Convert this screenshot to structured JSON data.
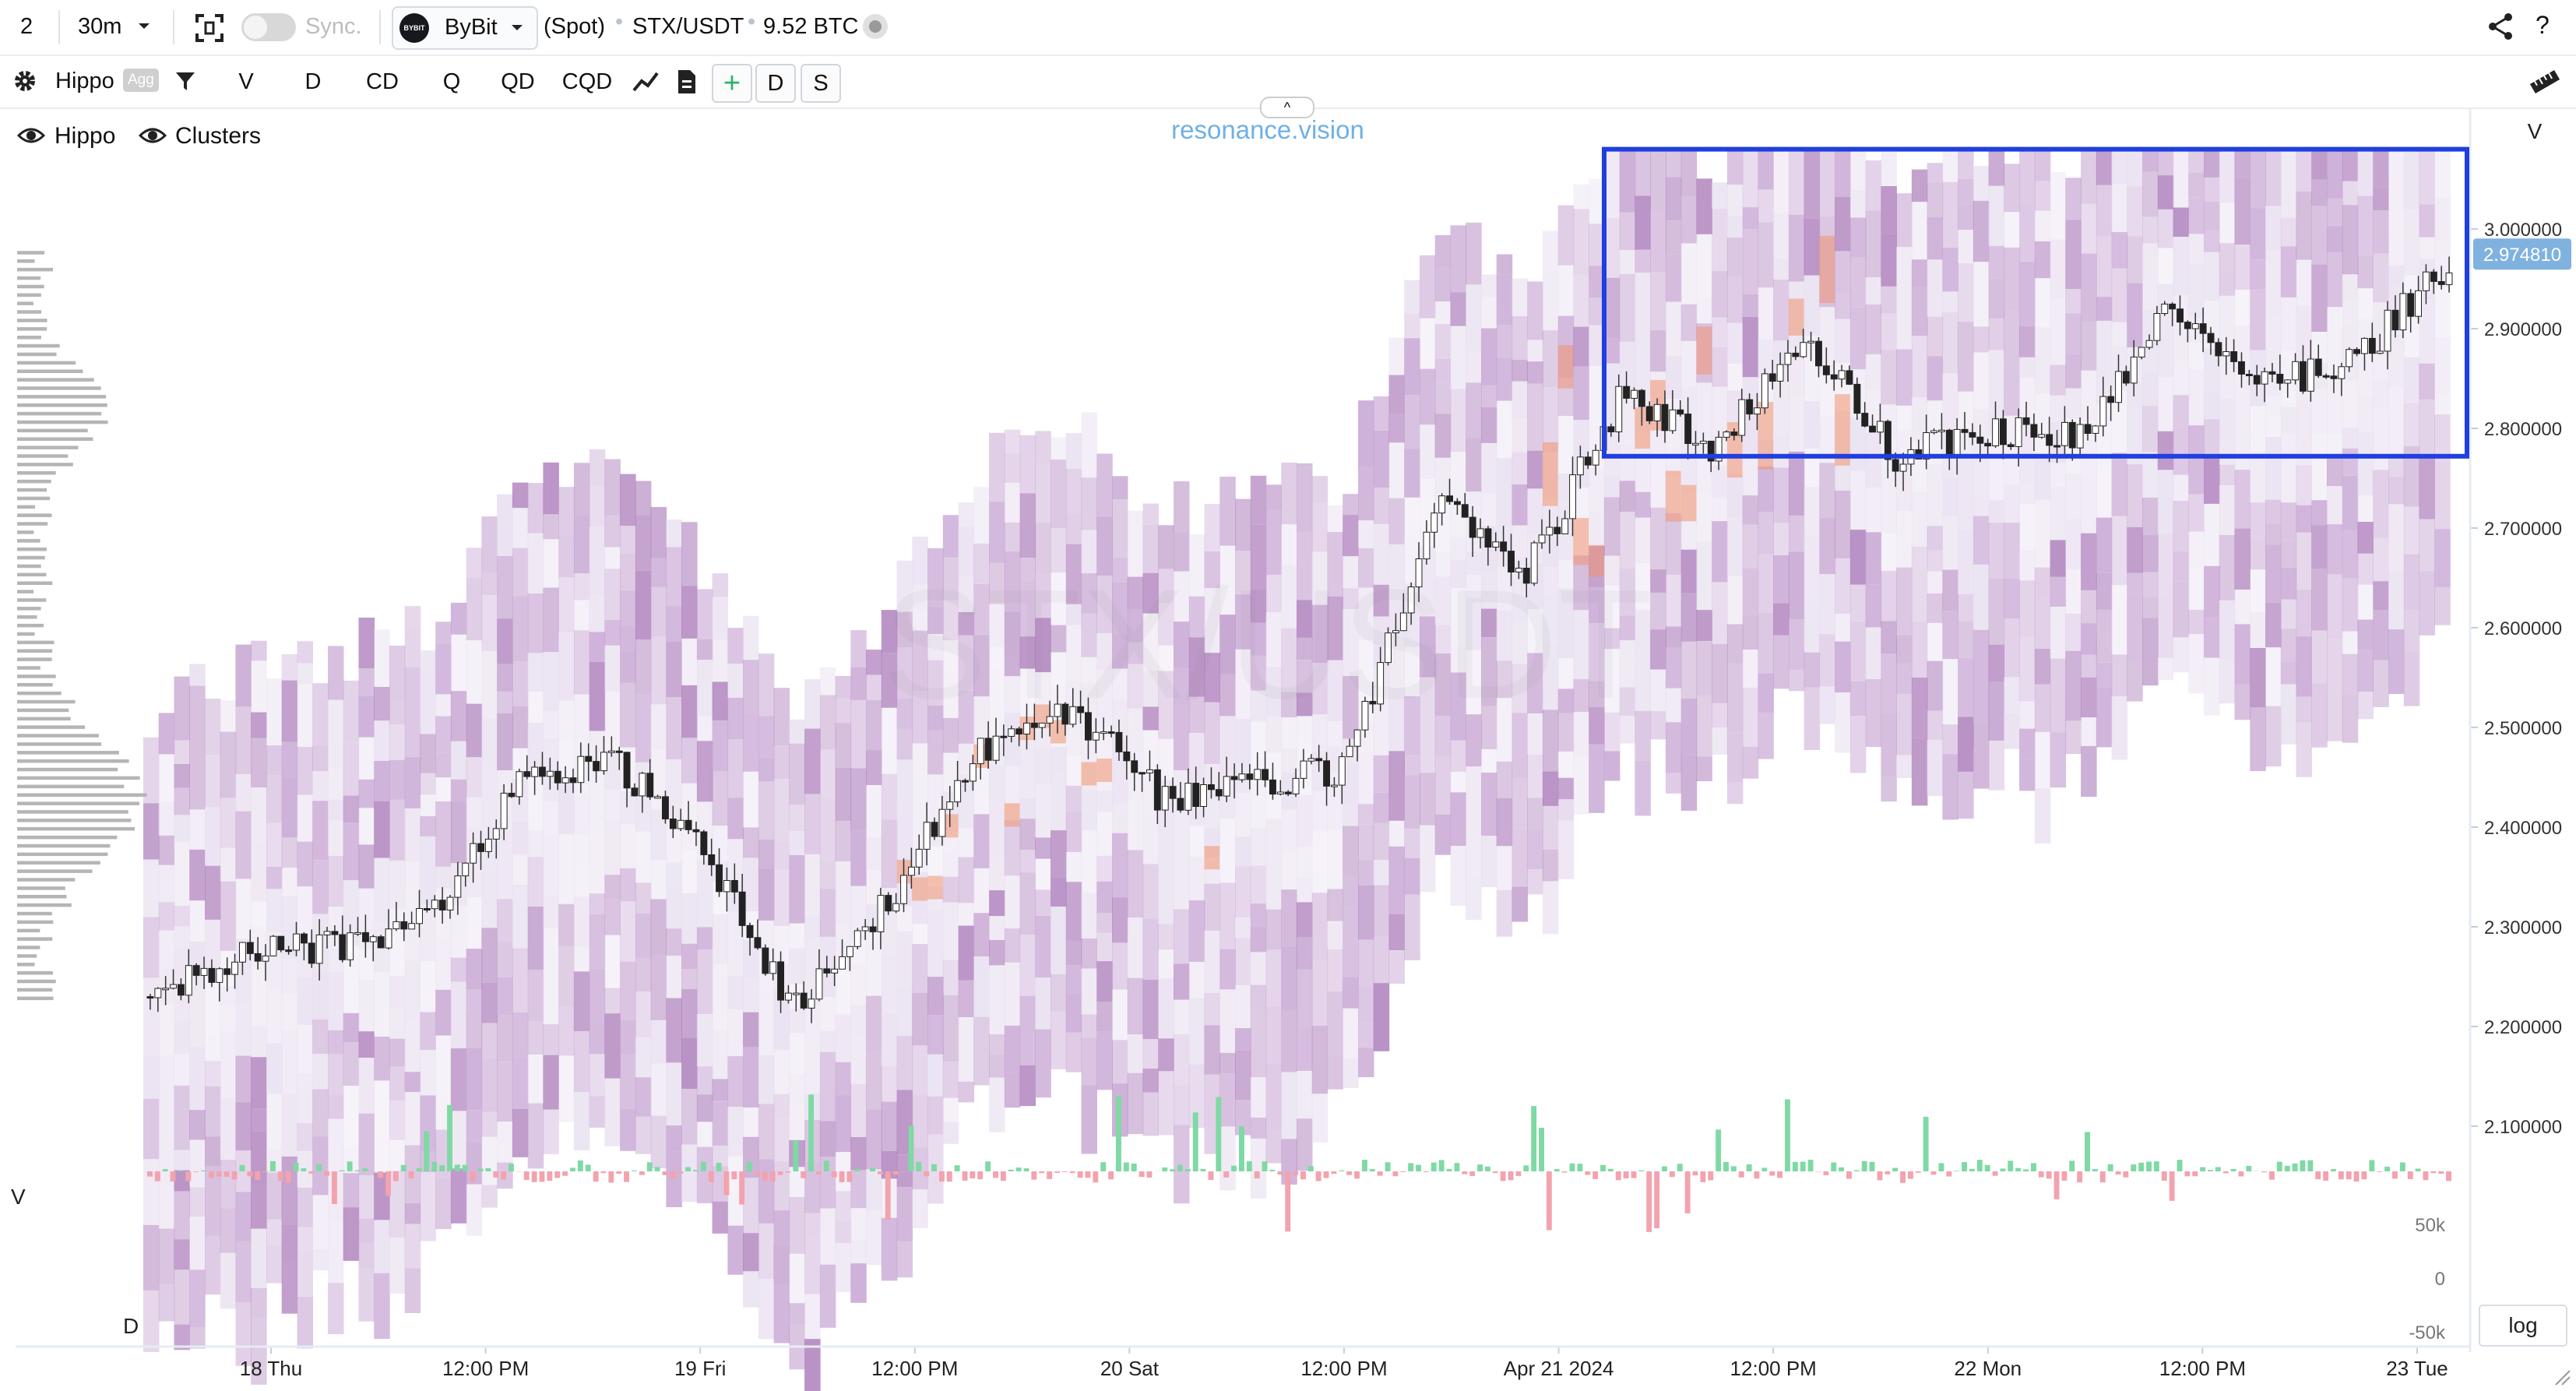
{
  "topbar": {
    "layout_number": "2",
    "interval": "30m",
    "sync_label": "Sync.",
    "exchange": "ByBit",
    "exchange_logo_text": "BYBIT",
    "market_type": "(Spot)",
    "pair": "STX/USDT",
    "volume": "9.52 BTC",
    "help": "?"
  },
  "toolbar": {
    "indicator": "Hippo",
    "agg_badge": "Agg",
    "buttons": [
      "V",
      "D",
      "CD",
      "Q",
      "QD",
      "CQD"
    ],
    "plus": "+",
    "d_button": "D",
    "s_button": "S",
    "collapse_glyph": "^"
  },
  "legend": {
    "hippo": "Hippo",
    "clusters": "Clusters"
  },
  "watermark": {
    "brand": "resonance.vision",
    "symbol": "STX/USDT"
  },
  "price_axis": {
    "header": "V",
    "ticks": [
      "3.000000",
      "2.900000",
      "2.800000",
      "2.700000",
      "2.600000",
      "2.500000",
      "2.400000",
      "2.300000",
      "2.200000",
      "2.100000"
    ],
    "current_price": "2.974810",
    "current_price_value": 2.97481
  },
  "volume_pane": {
    "label_v": "V",
    "label_d": "D",
    "ticks": [
      "50k",
      "0",
      "-50k"
    ],
    "log_button": "log"
  },
  "time_axis": {
    "labels": [
      "18 Thu",
      "12:00 PM",
      "19 Fri",
      "12:00 PM",
      "20 Sat",
      "12:00 PM",
      "Apr 21 2024",
      "12:00 PM",
      "22 Mon",
      "12:00 PM",
      "23 Tue"
    ]
  },
  "colors": {
    "accent_blue": "#1f3fe0",
    "price_tag": "#7fb2df",
    "delta_positive": "#7fd9a4",
    "delta_negative": "#f2a3ae",
    "heatmap_light": "#e6dcee",
    "heatmap_mid": "#c39fd0",
    "heatmap_dark": "#a978b8",
    "heatmap_hot": "#f0946f"
  },
  "chart_data": {
    "type": "candlestick_heatmap",
    "pair": "STX/USDT",
    "interval": "30m",
    "ylim": [
      2.03,
      3.08
    ],
    "x": [
      "18 Thu",
      "12:00 PM",
      "19 Fri",
      "12:00 PM",
      "20 Sat",
      "12:00 PM",
      "Apr 21 2024",
      "12:00 PM",
      "22 Mon",
      "12:00 PM",
      "23 Tue"
    ],
    "price_path": [
      {
        "t": "17 Wed 18:00",
        "price": 2.23
      },
      {
        "t": "18 Thu 00:00",
        "price": 2.27
      },
      {
        "t": "18 Thu 06:00",
        "price": 2.28
      },
      {
        "t": "18 Thu 12:00",
        "price": 2.31
      },
      {
        "t": "18 Thu 18:00",
        "price": 2.44
      },
      {
        "t": "19 Fri 00:00",
        "price": 2.47
      },
      {
        "t": "19 Fri 06:00",
        "price": 2.38
      },
      {
        "t": "19 Fri 08:00",
        "price": 2.22
      },
      {
        "t": "19 Fri 12:00",
        "price": 2.32
      },
      {
        "t": "19 Fri 16:00",
        "price": 2.48
      },
      {
        "t": "20 Sat 00:00",
        "price": 2.52
      },
      {
        "t": "20 Sat 06:00",
        "price": 2.43
      },
      {
        "t": "20 Sat 12:00",
        "price": 2.44
      },
      {
        "t": "20 Sat 18:00",
        "price": 2.46
      },
      {
        "t": "20 Sat 22:00",
        "price": 2.72
      },
      {
        "t": "21 Sun 00:00",
        "price": 2.66
      },
      {
        "t": "21 Sun 04:00",
        "price": 2.83
      },
      {
        "t": "21 Sun 12:00",
        "price": 2.78
      },
      {
        "t": "21 Sun 16:00",
        "price": 2.89
      },
      {
        "t": "21 Sun 18:00",
        "price": 2.77
      },
      {
        "t": "22 Mon 00:00",
        "price": 2.8
      },
      {
        "t": "22 Mon 06:00",
        "price": 2.79
      },
      {
        "t": "22 Mon 12:00",
        "price": 2.93
      },
      {
        "t": "22 Mon 16:00",
        "price": 2.84
      },
      {
        "t": "23 Tue 00:00",
        "price": 2.87
      },
      {
        "t": "23 Tue 06:00",
        "price": 2.97
      }
    ],
    "highlight_range": {
      "price_from": 2.772,
      "price_to": 3.08
    }
  }
}
